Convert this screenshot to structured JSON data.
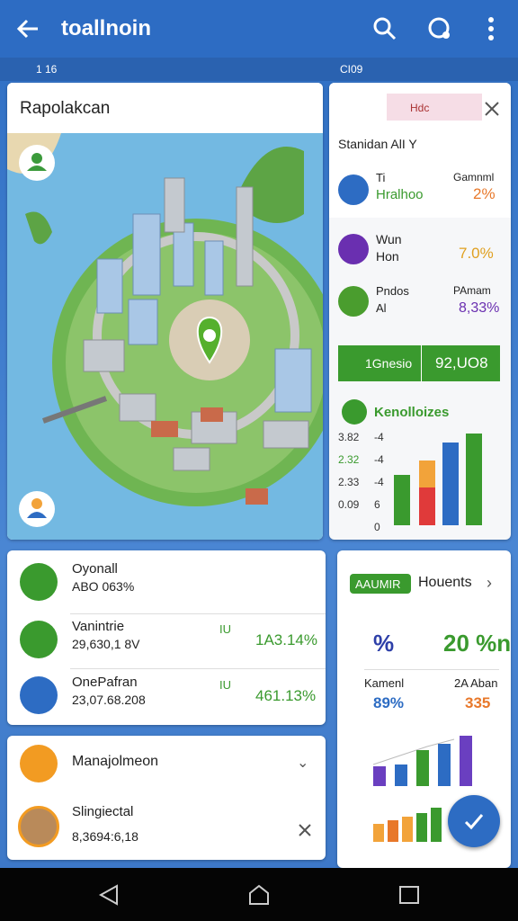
{
  "app_bar": {
    "title": "toallnoin"
  },
  "status_bar": {
    "left": "1 16",
    "center": "CI09"
  },
  "map_card": {
    "title": "Rapolakcan"
  },
  "side_panel": {
    "tag": "Hdc",
    "title": "Stanidan AlI Y",
    "rows": [
      {
        "label": "Ti",
        "sublabel": "Hralhoo",
        "caption": "Gamnml",
        "value": "2%"
      },
      {
        "label": "Wun",
        "sublabel": "Hon",
        "value": "7.0%"
      },
      {
        "label": "Pndos",
        "sublabel": "Al",
        "caption": "PAmam",
        "value": "8,33%"
      }
    ],
    "banner": {
      "label": "1Gnesio",
      "value": "92,UO8"
    },
    "chart": {
      "title": "Kenolloizes",
      "left_labels": [
        "3.82",
        "2.32",
        "2.33",
        "0.09"
      ],
      "right_labels": [
        "-4",
        "-4",
        "-4",
        "6",
        "0"
      ]
    }
  },
  "stats_card": {
    "rows": [
      {
        "title": "Oyonall",
        "value": "ABO 063%"
      },
      {
        "title": "Vanintrie",
        "value": "29,630,1 8V",
        "badge": "IU",
        "change": "1A3.14%"
      },
      {
        "title": "OnePafran",
        "value": "23,07.68.208",
        "badge": "IU",
        "change": "461.13%"
      }
    ]
  },
  "list_card": {
    "rows": [
      {
        "title": "Manajolmeon"
      },
      {
        "title": "Slingiectal",
        "value": "8,3694:6,18"
      }
    ]
  },
  "summary_card": {
    "badge": "AAUMIR",
    "title": "Houents",
    "left_value": "%",
    "right_value": "20 %n",
    "left_caption": "Kamenl",
    "left_stat": "89%",
    "right_caption": "2A Aban",
    "right_stat": "335"
  }
}
